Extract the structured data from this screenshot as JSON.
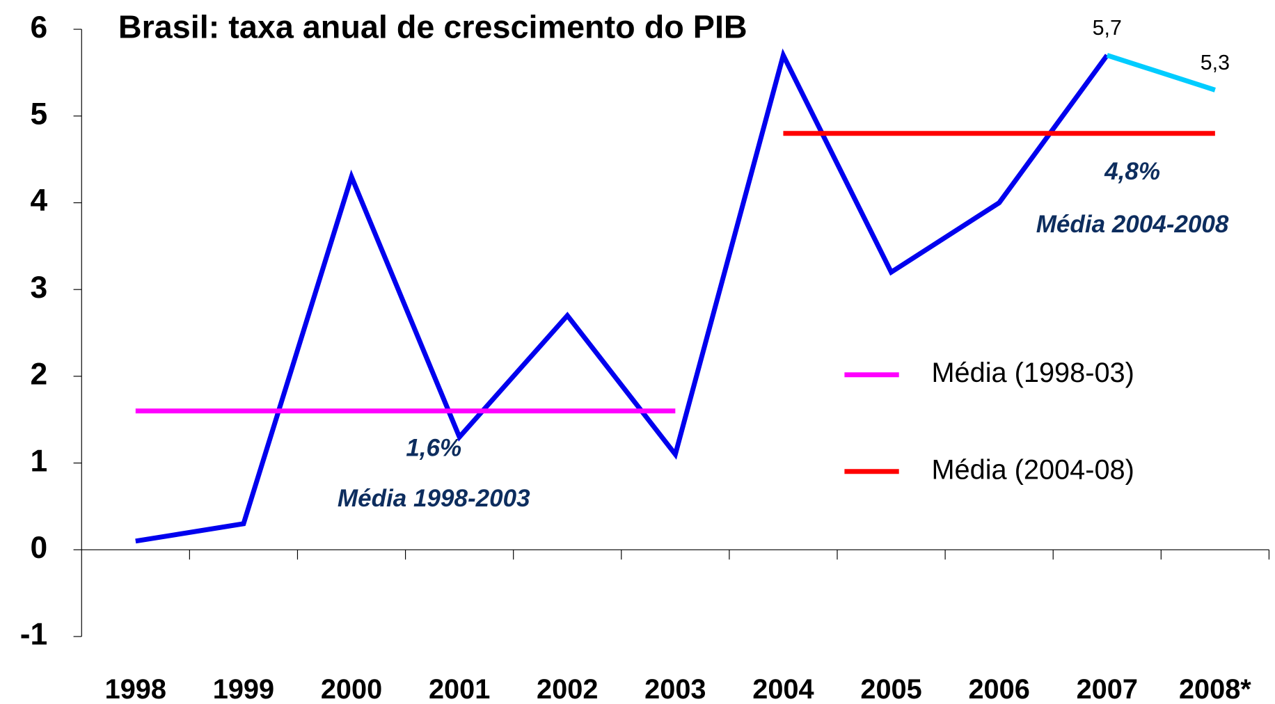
{
  "chart_data": {
    "type": "line",
    "title": "Brasil: taxa anual de crescimento do PIB",
    "categories": [
      "1998",
      "1999",
      "2000",
      "2001",
      "2002",
      "2003",
      "2004",
      "2005",
      "2006",
      "2007",
      "2008*"
    ],
    "series": [
      {
        "color": "#0000ee",
        "values": [
          0.1,
          0.3,
          4.3,
          1.3,
          2.7,
          1.1,
          5.7,
          3.2,
          4.0,
          5.7,
          null
        ]
      },
      {
        "color": "#00ccff",
        "values": [
          null,
          null,
          null,
          null,
          null,
          null,
          null,
          null,
          null,
          5.7,
          5.3
        ],
        "value_labels": [
          null,
          null,
          null,
          null,
          null,
          null,
          null,
          null,
          null,
          "5,7",
          "5,3"
        ]
      },
      {
        "name": "Média (1998-03)",
        "color": "#ff00ff",
        "values": [
          1.6,
          1.6,
          1.6,
          1.6,
          1.6,
          1.6,
          null,
          null,
          null,
          null,
          null
        ]
      },
      {
        "name": "Média (2004-08)",
        "color": "#ff0000",
        "values": [
          null,
          null,
          null,
          null,
          null,
          null,
          4.8,
          4.8,
          4.8,
          4.8,
          4.8
        ]
      }
    ],
    "annotations": [
      "1,6%",
      "Média 1998-2003",
      "4,8%",
      "Média 2004-2008"
    ],
    "ylim": [
      -1,
      6
    ],
    "yticks": [
      -1,
      0,
      1,
      2,
      3,
      4,
      5,
      6
    ],
    "grid": false
  }
}
